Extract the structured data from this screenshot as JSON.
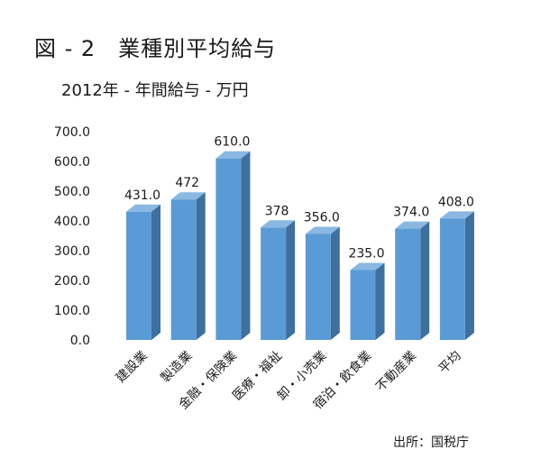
{
  "figure": {
    "title": "図 - 2　業種別平均給与",
    "subtitle": "2012年 - 年間給与 - 万円",
    "source": "出所：国税庁"
  },
  "chart_data": {
    "type": "bar",
    "title": "図 - 2　業種別平均給与",
    "subtitle": "2012年 - 年間給与 - 万円",
    "categories": [
      "建設業",
      "製造業",
      "金融・保険業",
      "医療・福祉",
      "卸・小売業",
      "宿泊・飲食業",
      "不動産業",
      "平均"
    ],
    "series": [
      {
        "values": [
          431.0,
          472,
          610.0,
          378,
          356.0,
          235.0,
          374.0,
          408.0
        ]
      }
    ],
    "data_labels": [
      "431.0",
      "472",
      "610.0",
      "378",
      "356.0",
      "235.0",
      "374.0",
      "408.0"
    ],
    "yticks": [
      "0.0",
      "100.0",
      "200.0",
      "300.0",
      "400.0",
      "500.0",
      "600.0",
      "700.0"
    ],
    "ylim": [
      0,
      700
    ],
    "xlabel": "",
    "ylabel": "",
    "grid": false,
    "style": "3d-bar",
    "colors": {
      "front": "#5b9bd5",
      "side": "#3e6f9e",
      "top": "#8ab8e3"
    }
  }
}
